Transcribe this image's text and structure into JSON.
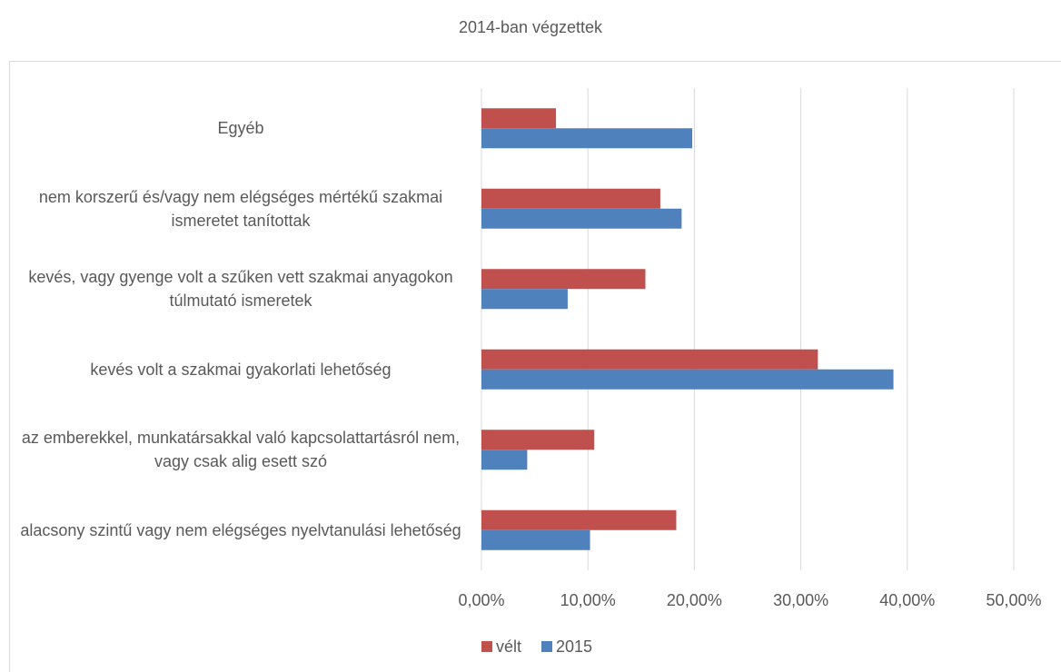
{
  "chart_data": {
    "type": "barh",
    "title": "2014-ban végzettek",
    "categories": [
      "Egyéb",
      "nem korszerű és/vagy nem elégséges mértékű szakmai ismeretet tanítottak",
      "kevés, vagy gyenge volt a szűken vett szakmai anyagokon túlmutató ismeretek",
      "kevés volt a szakmai gyakorlati lehetőség",
      "az emberekkel, munkatársakkal való kapcsolattartásról nem, vagy csak alig esett szó",
      "alacsony szintű vagy nem elégséges nyelvtanulási lehetőség"
    ],
    "series": [
      {
        "name": "vélt",
        "color": "#c0504d",
        "values": [
          7.0,
          16.8,
          15.4,
          31.6,
          10.6,
          18.3
        ]
      },
      {
        "name": "2015",
        "color": "#4f81bd",
        "values": [
          19.8,
          18.8,
          8.1,
          38.7,
          4.3,
          10.2
        ]
      }
    ],
    "xlim": [
      0,
      50
    ],
    "xticks": [
      {
        "value": 0,
        "label": "0,00%"
      },
      {
        "value": 10,
        "label": "10,00%"
      },
      {
        "value": 20,
        "label": "20,00%"
      },
      {
        "value": 30,
        "label": "30,00%"
      },
      {
        "value": 40,
        "label": "40,00%"
      },
      {
        "value": 50,
        "label": "50,00%"
      }
    ],
    "grid": true,
    "legend": "bottom"
  }
}
